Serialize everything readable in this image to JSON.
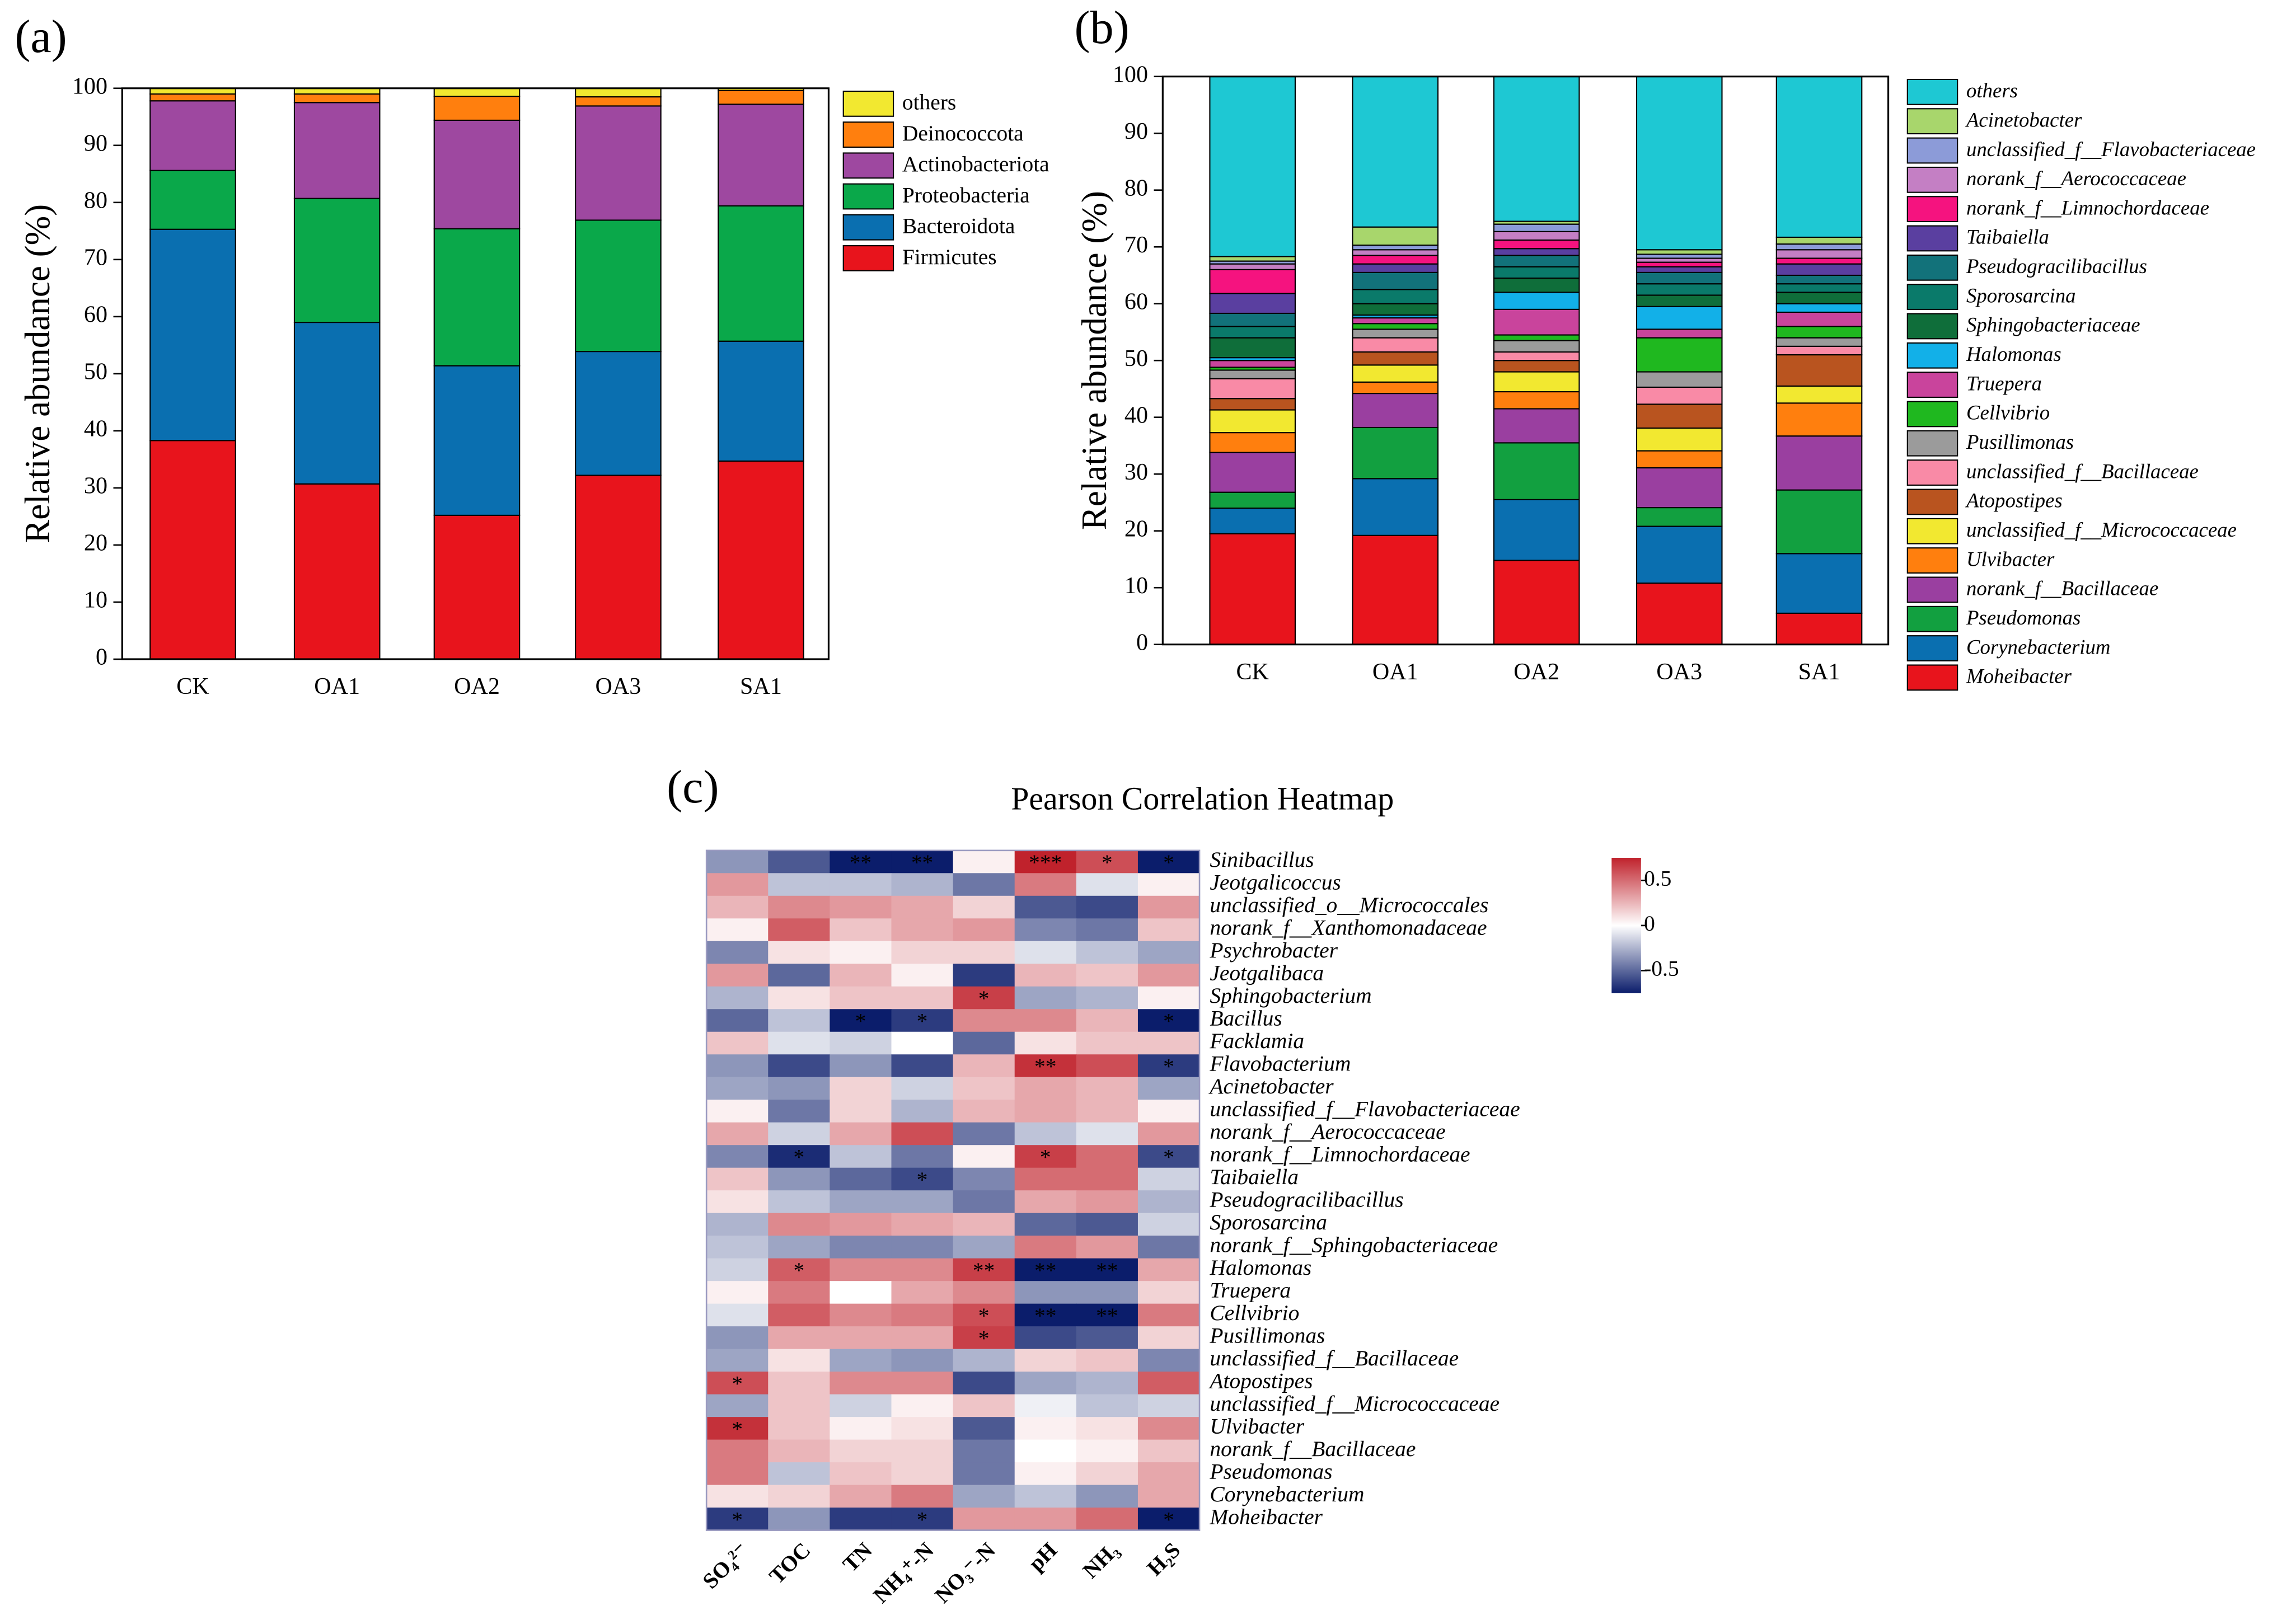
{
  "chart_data": [
    {
      "type": "bar",
      "stacked": true,
      "panel_label": "(a)",
      "y_label": "Relative abundance (%)",
      "categories": [
        "CK",
        "OA1",
        "OA2",
        "OA3",
        "SA1"
      ],
      "ylim": [
        0,
        100
      ],
      "yticks": [
        0,
        10,
        20,
        30,
        40,
        50,
        60,
        70,
        80,
        90,
        100
      ],
      "series": [
        {
          "name": "Firmicutes",
          "color": "#e8141c",
          "values": [
            38.3,
            30.7,
            25.2,
            32.2,
            34.7
          ]
        },
        {
          "name": "Bacteroidota",
          "color": "#0a6fb0",
          "values": [
            37,
            28.3,
            26.2,
            21.7,
            21
          ]
        },
        {
          "name": "Proteobacteria",
          "color": "#0aa84a",
          "values": [
            10.3,
            21.7,
            24,
            23,
            23.7
          ]
        },
        {
          "name": "Actinobacteriota",
          "color": "#9e48a0",
          "values": [
            12.2,
            16.8,
            19,
            20,
            17.8
          ]
        },
        {
          "name": "Deinococcota",
          "color": "#ff7f0e",
          "values": [
            1.2,
            1.5,
            4.2,
            1.6,
            2.4
          ]
        },
        {
          "name": "others",
          "color": "#f2e830",
          "values": [
            1,
            1,
            1.4,
            1.5,
            0.4
          ]
        }
      ]
    },
    {
      "type": "bar",
      "stacked": true,
      "panel_label": "(b)",
      "y_label": "Relative abundance (%)",
      "categories": [
        "CK",
        "OA1",
        "OA2",
        "OA3",
        "SA1"
      ],
      "ylim": [
        0,
        100
      ],
      "yticks": [
        0,
        10,
        20,
        30,
        40,
        50,
        60,
        70,
        80,
        90,
        100
      ],
      "series": [
        {
          "name": "Moheibacter",
          "color": "#e8141c",
          "values": [
            19.5,
            19.2,
            14.8,
            10.8,
            5.5
          ]
        },
        {
          "name": "Corynebacterium",
          "color": "#0a6fb0",
          "values": [
            4.5,
            10,
            10.7,
            10,
            10.5
          ]
        },
        {
          "name": "Pseudomonas",
          "color": "#12a040",
          "values": [
            2.8,
            9,
            10,
            3.3,
            11.2
          ]
        },
        {
          "name": "norank_f__Bacillaceae",
          "color": "#9a3fa0",
          "values": [
            7,
            6,
            6,
            7,
            9.5
          ]
        },
        {
          "name": "Ulvibacter",
          "color": "#ff7f0e",
          "values": [
            3.5,
            2,
            3,
            3,
            5.8
          ]
        },
        {
          "name": "unclassified_f__Micrococcaceae",
          "color": "#f2e830",
          "values": [
            4,
            3,
            3.5,
            4,
            3
          ]
        },
        {
          "name": "Atopostipes",
          "color": "#b9541f",
          "values": [
            2,
            2.3,
            2,
            4.2,
            5.5
          ]
        },
        {
          "name": "unclassified_f__Bacillaceae",
          "color": "#f98aa6",
          "values": [
            3.5,
            2.5,
            1.5,
            3,
            1.5
          ]
        },
        {
          "name": "Pusillimonas",
          "color": "#9b9b9b",
          "values": [
            1.5,
            1.5,
            2,
            2.7,
            1.5
          ]
        },
        {
          "name": "Cellvibrio",
          "color": "#1fb81f",
          "values": [
            0.5,
            1,
            1,
            6,
            2
          ]
        },
        {
          "name": "Truepera",
          "color": "#c9449c",
          "values": [
            1.2,
            1,
            4.5,
            1.5,
            2.5
          ]
        },
        {
          "name": "Halomonas",
          "color": "#12b0e8",
          "values": [
            0.5,
            0.5,
            3,
            4,
            1.5
          ]
        },
        {
          "name": "Sphingobacteriaceae",
          "color": "#0f6e3a",
          "values": [
            3.5,
            2,
            2.5,
            2,
            2
          ]
        },
        {
          "name": "Sporosarcina",
          "color": "#0a7a6a",
          "values": [
            2,
            2.5,
            2,
            2,
            1.5
          ]
        },
        {
          "name": "Pseudogracilibacillus",
          "color": "#12727a",
          "values": [
            2.3,
            3,
            2,
            2,
            1.5
          ]
        },
        {
          "name": "Taibaiella",
          "color": "#5a3fa0",
          "values": [
            3.5,
            1.5,
            1.2,
            1,
            2
          ]
        },
        {
          "name": "norank_f__Limnochordaceae",
          "color": "#f5137f",
          "values": [
            4.2,
            1.5,
            1.5,
            0.8,
            1
          ]
        },
        {
          "name": "norank_f__Aerococcaceae",
          "color": "#c47fc4",
          "values": [
            1,
            1,
            1.5,
            0.7,
            1.5
          ]
        },
        {
          "name": "unclassified_f__Flavobacteriaceae",
          "color": "#8c9bd8",
          "values": [
            0.5,
            0.8,
            1.3,
            0.7,
            1
          ]
        },
        {
          "name": "Acinetobacter",
          "color": "#a8d66c",
          "values": [
            0.8,
            3.2,
            0.5,
            0.8,
            1.2
          ]
        },
        {
          "name": "others",
          "color": "#1ec8d3",
          "values": [
            31.7,
            26.5,
            25.5,
            30.5,
            28.3
          ]
        }
      ]
    },
    {
      "type": "heatmap",
      "panel_label": "(c)",
      "title": "Pearson Correlation Heatmap",
      "columns": [
        "SO₄²⁻",
        "TOC",
        "TN",
        "NH₄⁺-N",
        "NO₃⁻-N",
        "pH",
        "NH₃",
        "H₂S"
      ],
      "rows": [
        "Sinibacillus",
        "Jeotgalicoccus",
        "unclassified_o__Micrococcales",
        "norank_f__Xanthomonadaceae",
        "Psychrobacter",
        "Jeotgalibaca",
        "Sphingobacterium",
        "Bacillus",
        "Facklamia",
        "Flavobacterium",
        "Acinetobacter",
        "unclassified_f__Flavobacteriaceae",
        "norank_f__Aerococcaceae",
        "norank_f__Limnochordaceae",
        "Taibaiella",
        "Pseudogracilibacillus",
        "Sporosarcina",
        "norank_f__Sphingobacteriaceae",
        "Halomonas",
        "Truepera",
        "Cellvibrio",
        "Pusillimonas",
        "unclassified_f__Bacillaceae",
        "Atopostipes",
        "unclassified_f__Micrococcaceae",
        "Ulvibacter",
        "norank_f__Bacillaceae",
        "Pseudomonas",
        "Corynebacterium",
        "Moheibacter"
      ],
      "values": [
        [
          -0.35,
          -0.55,
          -0.8,
          -0.8,
          0.05,
          0.75,
          0.6,
          -0.8
        ],
        [
          0.35,
          -0.2,
          -0.2,
          -0.25,
          -0.45,
          0.45,
          -0.1,
          0.05
        ],
        [
          0.25,
          0.4,
          0.35,
          0.3,
          0.15,
          -0.55,
          -0.6,
          0.35
        ],
        [
          0.05,
          0.55,
          0.2,
          0.3,
          0.35,
          -0.4,
          -0.45,
          0.2
        ],
        [
          -0.4,
          0.1,
          0.05,
          0.15,
          0.15,
          -0.1,
          -0.2,
          -0.3
        ],
        [
          0.35,
          -0.5,
          0.25,
          0.05,
          -0.65,
          0.25,
          0.2,
          0.35
        ],
        [
          -0.25,
          0.1,
          0.2,
          0.2,
          0.65,
          -0.3,
          -0.25,
          0.05
        ],
        [
          -0.5,
          -0.2,
          -0.75,
          -0.65,
          0.4,
          0.4,
          0.25,
          -0.75
        ],
        [
          0.2,
          -0.1,
          -0.15,
          0,
          -0.5,
          0.1,
          0.2,
          0.2
        ],
        [
          -0.35,
          -0.6,
          -0.35,
          -0.6,
          0.25,
          0.7,
          0.6,
          -0.65
        ],
        [
          -0.3,
          -0.35,
          0.15,
          -0.15,
          0.2,
          0.3,
          0.25,
          -0.3
        ],
        [
          0.05,
          -0.45,
          0.15,
          -0.25,
          0.25,
          0.3,
          0.25,
          0.05
        ],
        [
          0.3,
          -0.15,
          0.3,
          0.6,
          -0.45,
          -0.2,
          -0.1,
          0.35
        ],
        [
          -0.4,
          -0.7,
          -0.2,
          -0.45,
          0.05,
          0.65,
          0.5,
          -0.6
        ],
        [
          0.2,
          -0.35,
          -0.5,
          -0.6,
          -0.4,
          0.5,
          0.5,
          -0.15
        ],
        [
          0.1,
          -0.2,
          -0.3,
          -0.3,
          -0.45,
          0.3,
          0.35,
          -0.25
        ],
        [
          -0.25,
          0.4,
          0.35,
          0.3,
          0.25,
          -0.5,
          -0.55,
          -0.15
        ],
        [
          -0.2,
          -0.3,
          -0.4,
          -0.4,
          -0.3,
          0.45,
          0.35,
          -0.45
        ],
        [
          -0.15,
          0.55,
          0.4,
          0.4,
          0.65,
          -0.8,
          -0.8,
          0.3
        ],
        [
          0.05,
          0.45,
          0,
          0.3,
          0.4,
          -0.35,
          -0.35,
          0.15
        ],
        [
          -0.1,
          0.55,
          0.4,
          0.45,
          0.6,
          -0.8,
          -0.75,
          0.45
        ],
        [
          -0.35,
          0.3,
          0.3,
          0.3,
          0.65,
          -0.6,
          -0.55,
          0.15
        ],
        [
          -0.3,
          0.1,
          -0.3,
          -0.35,
          -0.25,
          0.15,
          0.2,
          -0.4
        ],
        [
          0.6,
          0.2,
          0.4,
          0.4,
          -0.6,
          -0.3,
          -0.25,
          0.55
        ],
        [
          -0.3,
          0.2,
          -0.15,
          0.05,
          0.2,
          -0.05,
          -0.2,
          -0.15
        ],
        [
          0.7,
          0.2,
          0.05,
          0.1,
          -0.55,
          0.05,
          0.1,
          0.4
        ],
        [
          0.45,
          0.25,
          0.15,
          0.15,
          -0.45,
          0,
          0.05,
          0.2
        ],
        [
          0.45,
          -0.2,
          0.2,
          0.15,
          -0.45,
          0.05,
          0.15,
          0.3
        ],
        [
          0.1,
          0.15,
          0.3,
          0.45,
          -0.3,
          -0.2,
          -0.35,
          0.3
        ],
        [
          -0.65,
          -0.35,
          -0.65,
          -0.65,
          0.35,
          0.35,
          0.5,
          -0.8
        ]
      ],
      "stars": [
        [
          null,
          null,
          "**",
          "**",
          null,
          "***",
          "*",
          "*"
        ],
        [
          null,
          null,
          null,
          null,
          null,
          null,
          null,
          null
        ],
        [
          null,
          null,
          null,
          null,
          null,
          null,
          null,
          null
        ],
        [
          null,
          null,
          null,
          null,
          null,
          null,
          null,
          null
        ],
        [
          null,
          null,
          null,
          null,
          null,
          null,
          null,
          null
        ],
        [
          null,
          null,
          null,
          null,
          null,
          null,
          null,
          null
        ],
        [
          null,
          null,
          null,
          null,
          "*",
          null,
          null,
          null
        ],
        [
          null,
          null,
          "*",
          "*",
          null,
          null,
          null,
          "*"
        ],
        [
          null,
          null,
          null,
          null,
          null,
          null,
          null,
          null
        ],
        [
          null,
          null,
          null,
          null,
          null,
          "**",
          null,
          "*"
        ],
        [
          null,
          null,
          null,
          null,
          null,
          null,
          null,
          null
        ],
        [
          null,
          null,
          null,
          null,
          null,
          null,
          null,
          null
        ],
        [
          null,
          null,
          null,
          null,
          null,
          null,
          null,
          null
        ],
        [
          null,
          "*",
          null,
          null,
          null,
          "*",
          null,
          "*"
        ],
        [
          null,
          null,
          null,
          "*",
          null,
          null,
          null,
          null
        ],
        [
          null,
          null,
          null,
          null,
          null,
          null,
          null,
          null
        ],
        [
          null,
          null,
          null,
          null,
          null,
          null,
          null,
          null
        ],
        [
          null,
          null,
          null,
          null,
          null,
          null,
          null,
          null
        ],
        [
          null,
          "*",
          null,
          null,
          "**",
          "**",
          "**",
          null
        ],
        [
          null,
          null,
          null,
          null,
          null,
          null,
          null,
          null
        ],
        [
          null,
          null,
          null,
          null,
          "*",
          "**",
          "**",
          null
        ],
        [
          null,
          null,
          null,
          null,
          "*",
          null,
          null,
          null
        ],
        [
          null,
          null,
          null,
          null,
          null,
          null,
          null,
          null
        ],
        [
          "*",
          null,
          null,
          null,
          null,
          null,
          null,
          null
        ],
        [
          null,
          null,
          null,
          null,
          null,
          null,
          null,
          null
        ],
        [
          "*",
          null,
          null,
          null,
          null,
          null,
          null,
          null
        ],
        [
          null,
          null,
          null,
          null,
          null,
          null,
          null,
          null
        ],
        [
          null,
          null,
          null,
          null,
          null,
          null,
          null,
          null
        ],
        [
          null,
          null,
          null,
          null,
          null,
          null,
          null,
          null
        ],
        [
          "*",
          null,
          null,
          "*",
          null,
          null,
          null,
          "*"
        ]
      ],
      "colormap": [
        "#0b1d6b",
        "#ffffff",
        "#c0222c"
      ],
      "clim": [
        -0.75,
        0.75
      ],
      "cticks": [
        -0.5,
        0,
        0.5
      ]
    }
  ]
}
